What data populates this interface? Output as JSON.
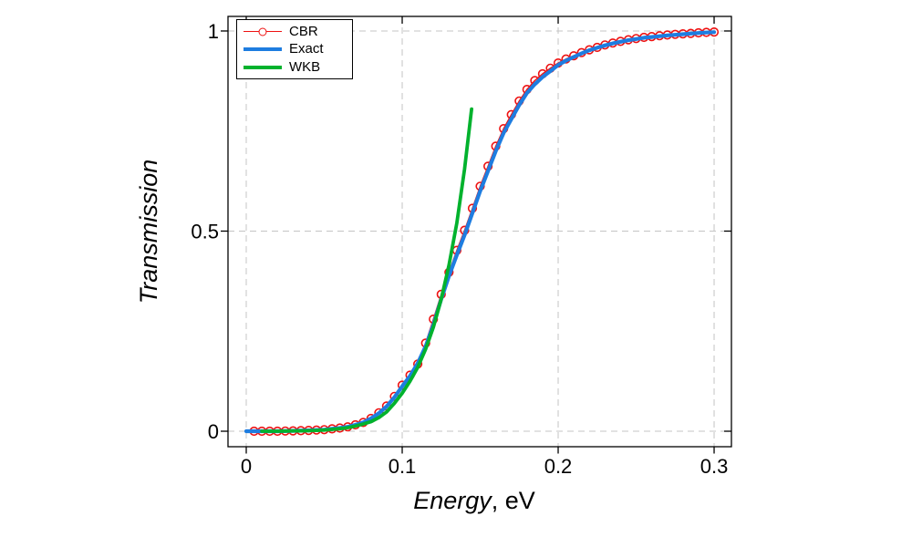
{
  "chart_data": {
    "type": "line",
    "title": "",
    "xlabel_italic": "Energy",
    "xlabel_unit": ", eV",
    "ylabel": "Transmission",
    "x_ticks": [
      0,
      0.1,
      0.2,
      0.3
    ],
    "x_tick_labels": [
      "0",
      "0.1",
      "0.2",
      "0.3"
    ],
    "y_ticks": [
      0,
      0.5,
      1
    ],
    "y_tick_labels": [
      "0",
      "0.5",
      "1"
    ],
    "xlim": [
      -0.0117,
      0.3111
    ],
    "ylim": [
      -0.0387,
      1.0364
    ],
    "grid": "dashed",
    "grid_color": "#c4c4c4",
    "legend_position": "upper-left",
    "series": [
      {
        "name": "CBR",
        "color": "#ee1111",
        "marker": "circle",
        "line_width": 1.4,
        "x": [
          0.005,
          0.01,
          0.015,
          0.02,
          0.025,
          0.03,
          0.035,
          0.04,
          0.045,
          0.05,
          0.055,
          0.06,
          0.065,
          0.07,
          0.075,
          0.08,
          0.085,
          0.09,
          0.095,
          0.1,
          0.105,
          0.11,
          0.115,
          0.12,
          0.125,
          0.13,
          0.135,
          0.14,
          0.145,
          0.15,
          0.155,
          0.16,
          0.165,
          0.17,
          0.175,
          0.18,
          0.185,
          0.19,
          0.195,
          0.2,
          0.205,
          0.21,
          0.215,
          0.22,
          0.225,
          0.23,
          0.235,
          0.24,
          0.245,
          0.25,
          0.255,
          0.26,
          0.265,
          0.27,
          0.275,
          0.28,
          0.285,
          0.29,
          0.295,
          0.3
        ],
        "y": [
          0,
          0,
          0,
          0,
          0.0005,
          0.001,
          0.0015,
          0.002,
          0.003,
          0.004,
          0.006,
          0.008,
          0.011,
          0.016,
          0.022,
          0.032,
          0.046,
          0.063,
          0.087,
          0.115,
          0.14,
          0.168,
          0.22,
          0.28,
          0.342,
          0.397,
          0.452,
          0.502,
          0.557,
          0.612,
          0.662,
          0.712,
          0.756,
          0.791,
          0.825,
          0.854,
          0.876,
          0.893,
          0.907,
          0.92,
          0.93,
          0.938,
          0.946,
          0.953,
          0.959,
          0.965,
          0.97,
          0.974,
          0.978,
          0.981,
          0.984,
          0.986,
          0.988,
          0.99,
          0.9915,
          0.993,
          0.994,
          0.9955,
          0.9965,
          0.9975
        ]
      },
      {
        "name": "Exact",
        "color": "#1e7de0",
        "marker": "none",
        "line_width": 4.2,
        "x": [
          0,
          0.005,
          0.01,
          0.015,
          0.02,
          0.025,
          0.03,
          0.035,
          0.04,
          0.045,
          0.05,
          0.055,
          0.06,
          0.065,
          0.07,
          0.075,
          0.08,
          0.085,
          0.09,
          0.095,
          0.1,
          0.105,
          0.11,
          0.115,
          0.12,
          0.125,
          0.13,
          0.135,
          0.14,
          0.145,
          0.15,
          0.155,
          0.16,
          0.165,
          0.17,
          0.175,
          0.18,
          0.185,
          0.19,
          0.195,
          0.2,
          0.205,
          0.21,
          0.215,
          0.22,
          0.225,
          0.23,
          0.235,
          0.24,
          0.245,
          0.25,
          0.255,
          0.26,
          0.265,
          0.27,
          0.275,
          0.28,
          0.285,
          0.29,
          0.295,
          0.3
        ],
        "y": [
          0,
          0,
          0,
          0,
          0,
          0.0005,
          0.001,
          0.0015,
          0.002,
          0.003,
          0.004,
          0.006,
          0.008,
          0.011,
          0.016,
          0.022,
          0.032,
          0.045,
          0.062,
          0.085,
          0.112,
          0.138,
          0.17,
          0.212,
          0.266,
          0.33,
          0.388,
          0.44,
          0.49,
          0.545,
          0.6,
          0.65,
          0.7,
          0.745,
          0.78,
          0.815,
          0.845,
          0.867,
          0.885,
          0.9,
          0.915,
          0.926,
          0.935,
          0.944,
          0.952,
          0.958,
          0.964,
          0.969,
          0.973,
          0.977,
          0.98,
          0.983,
          0.985,
          0.987,
          0.989,
          0.9905,
          0.992,
          0.9935,
          0.995,
          0.996,
          0.997
        ]
      },
      {
        "name": "WKB",
        "color": "#00b22d",
        "marker": "none",
        "line_width": 3.8,
        "x": [
          0.01,
          0.015,
          0.02,
          0.025,
          0.03,
          0.035,
          0.04,
          0.045,
          0.05,
          0.055,
          0.06,
          0.065,
          0.07,
          0.075,
          0.08,
          0.085,
          0.09,
          0.095,
          0.1,
          0.105,
          0.11,
          0.115,
          0.12,
          0.125,
          0.13,
          0.135,
          0.14,
          0.1445
        ],
        "y": [
          0,
          0,
          0,
          0.0005,
          0.001,
          0.001,
          0.0015,
          0.002,
          0.003,
          0.0045,
          0.0065,
          0.009,
          0.013,
          0.018,
          0.024,
          0.034,
          0.048,
          0.07,
          0.095,
          0.125,
          0.16,
          0.205,
          0.26,
          0.33,
          0.415,
          0.52,
          0.655,
          0.805
        ]
      }
    ]
  }
}
